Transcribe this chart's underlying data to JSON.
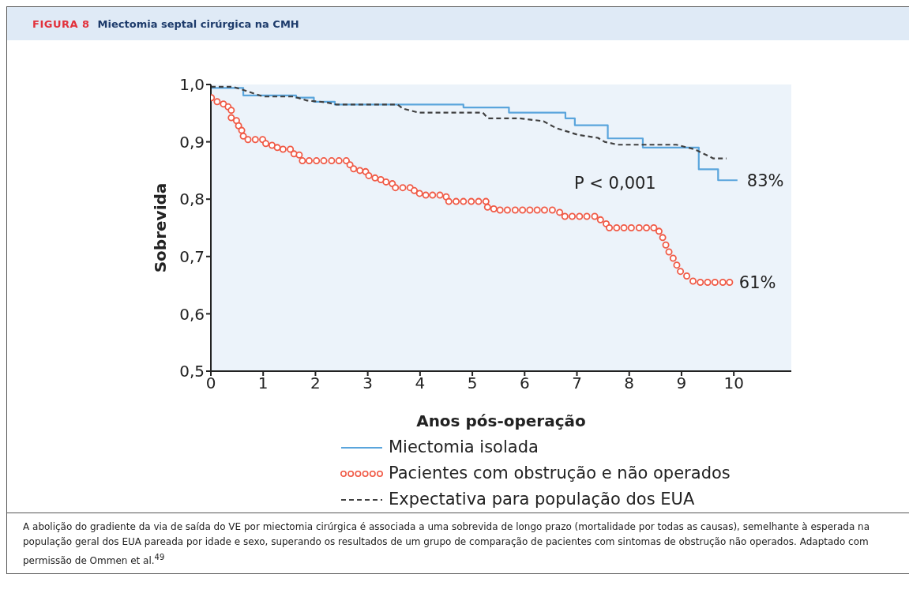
{
  "chart_data": {
    "type": "step",
    "title": "FIGURA 8",
    "subtitle": "Miectomia septal cirúrgica na CMH",
    "xlabel": "Anos pós-operação",
    "ylabel": "Sobrevida",
    "xlim": [
      0,
      11.1
    ],
    "xticks": [
      0,
      1,
      2,
      3,
      4,
      5,
      6,
      7,
      8,
      9,
      10
    ],
    "ylim": [
      0.5,
      1.0
    ],
    "yticks": [
      {
        "value": 0.5,
        "label": "0,5"
      },
      {
        "value": 0.6,
        "label": "0,6"
      },
      {
        "value": 0.7,
        "label": "0,7"
      },
      {
        "value": 0.8,
        "label": "0,8"
      },
      {
        "value": 0.9,
        "label": "0,9"
      },
      {
        "value": 1.0,
        "label": "1,0"
      }
    ],
    "grid": false,
    "legend": "bottom",
    "series": [
      {
        "name": "Miectomia isolada",
        "color": "#5aa5dc",
        "line_style": "solid",
        "marker": "none",
        "x": [
          0,
          0.62,
          1.63,
          1.97,
          2.37,
          4.83,
          5.7,
          6.78,
          6.96,
          7.59,
          8.26,
          9.3,
          9.33,
          9.7,
          10.07
        ],
        "values": [
          0.994,
          0.981,
          0.977,
          0.97,
          0.965,
          0.96,
          0.951,
          0.941,
          0.929,
          0.906,
          0.89,
          0.89,
          0.852,
          0.833,
          0.833
        ]
      },
      {
        "name": "Pacientes com obstrução e não operados",
        "color": "#f05a46",
        "type": "scatter",
        "marker": "circle",
        "x": [
          0.01,
          0.12,
          0.24,
          0.33,
          0.39,
          0.39,
          0.49,
          0.53,
          0.59,
          0.62,
          0.71,
          0.85,
          0.99,
          1.05,
          1.17,
          1.27,
          1.38,
          1.52,
          1.59,
          1.69,
          1.75,
          1.88,
          2.02,
          2.16,
          2.31,
          2.45,
          2.59,
          2.66,
          2.73,
          2.85,
          2.96,
          3.02,
          3.14,
          3.25,
          3.35,
          3.47,
          3.53,
          3.67,
          3.81,
          3.89,
          3.99,
          4.11,
          4.24,
          4.38,
          4.5,
          4.55,
          4.69,
          4.83,
          4.98,
          5.12,
          5.26,
          5.29,
          5.41,
          5.53,
          5.67,
          5.82,
          5.96,
          6.1,
          6.24,
          6.38,
          6.53,
          6.67,
          6.77,
          6.91,
          7.05,
          7.19,
          7.34,
          7.45,
          7.56,
          7.62,
          7.76,
          7.9,
          8.04,
          8.19,
          8.33,
          8.47,
          8.57,
          8.64,
          8.7,
          8.76,
          8.84,
          8.91,
          8.98,
          9.1,
          9.22,
          9.36,
          9.5,
          9.64,
          9.79,
          9.92
        ],
        "values": [
          0.977,
          0.97,
          0.966,
          0.961,
          0.955,
          0.942,
          0.937,
          0.928,
          0.92,
          0.91,
          0.904,
          0.904,
          0.904,
          0.897,
          0.894,
          0.89,
          0.887,
          0.887,
          0.879,
          0.877,
          0.867,
          0.867,
          0.867,
          0.867,
          0.867,
          0.867,
          0.867,
          0.86,
          0.853,
          0.85,
          0.848,
          0.841,
          0.837,
          0.834,
          0.83,
          0.827,
          0.82,
          0.82,
          0.82,
          0.815,
          0.81,
          0.807,
          0.807,
          0.807,
          0.804,
          0.796,
          0.796,
          0.796,
          0.796,
          0.796,
          0.796,
          0.786,
          0.783,
          0.781,
          0.781,
          0.781,
          0.781,
          0.781,
          0.781,
          0.781,
          0.781,
          0.777,
          0.77,
          0.77,
          0.77,
          0.77,
          0.77,
          0.764,
          0.757,
          0.75,
          0.75,
          0.75,
          0.75,
          0.75,
          0.75,
          0.75,
          0.744,
          0.733,
          0.72,
          0.708,
          0.697,
          0.685,
          0.674,
          0.666,
          0.657,
          0.655,
          0.655,
          0.655,
          0.655,
          0.655
        ]
      },
      {
        "name": "Expectativa para população dos EUA",
        "color": "#404040",
        "type": "line",
        "line_style": "dashed",
        "marker": "none",
        "x": [
          0,
          0.42,
          0.6,
          1.0,
          1.58,
          1.84,
          2.2,
          2.4,
          3.57,
          3.67,
          3.97,
          5.2,
          5.3,
          5.9,
          6.36,
          6.6,
          7.03,
          7.4,
          7.53,
          7.78,
          8.9,
          9.25,
          9.61,
          9.86
        ],
        "values": [
          0.996,
          0.996,
          0.991,
          0.979,
          0.979,
          0.972,
          0.969,
          0.965,
          0.965,
          0.958,
          0.951,
          0.951,
          0.941,
          0.941,
          0.936,
          0.924,
          0.912,
          0.907,
          0.9,
          0.895,
          0.895,
          0.887,
          0.871,
          0.871
        ]
      }
    ],
    "annotations": [
      "P < 0,001",
      {
        "text": "83%",
        "x": 10.07,
        "y": 0.833
      },
      {
        "text": "61%",
        "x": 9.92,
        "y": 0.655
      },
      "A abolição do gradiente da via de saída do VE por miectomia cirúrgica é associada a uma sobrevida de longo prazo (mortalidade por todas as causas), semelhante à esperada na população geral dos EUA pareada por idade e sexo, superando os resultados de um grupo de comparação de pacientes com sintomas de obstrução não operados. Adaptado com permissão de Ommen et al.$^{49}$"
    ]
  }
}
